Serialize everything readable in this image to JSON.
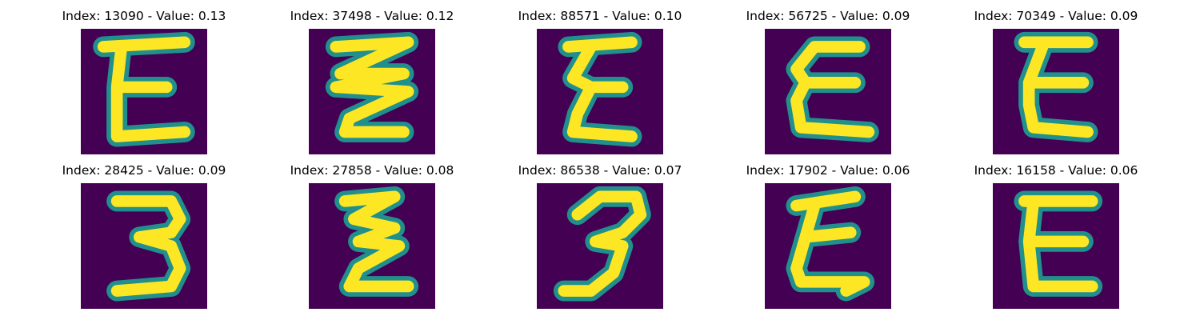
{
  "colors": {
    "background": "#440154",
    "stroke_edge": "#21908d",
    "stroke_core": "#fde725"
  },
  "panels": [
    {
      "title": "Index: 13090 - Value: 0.13",
      "glyph": "E"
    },
    {
      "title": "Index: 37498 - Value: 0.12",
      "glyph": "zigzag"
    },
    {
      "title": "Index: 88571 - Value: 0.10",
      "glyph": "E"
    },
    {
      "title": "Index: 56725 - Value: 0.09",
      "glyph": "E"
    },
    {
      "title": "Index: 70349 - Value: 0.09",
      "glyph": "E"
    },
    {
      "title": "Index: 28425 - Value: 0.09",
      "glyph": "3"
    },
    {
      "title": "Index: 27858 - Value: 0.08",
      "glyph": "zigzag"
    },
    {
      "title": "Index: 86538 - Value: 0.07",
      "glyph": "3"
    },
    {
      "title": "Index: 17902 - Value: 0.06",
      "glyph": "E"
    },
    {
      "title": "Index: 16158 - Value: 0.06",
      "glyph": "E"
    }
  ]
}
